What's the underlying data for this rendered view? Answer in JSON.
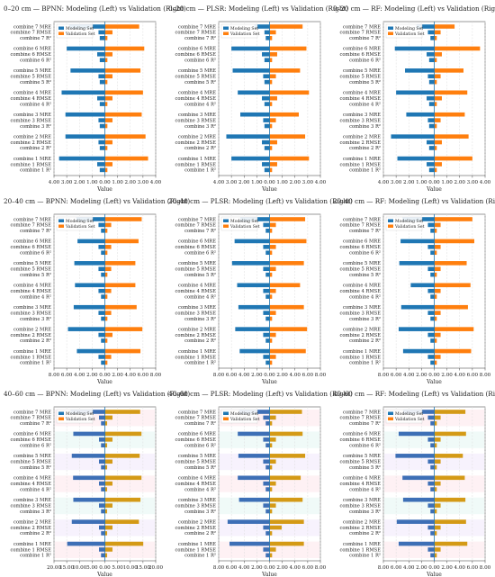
{
  "colors": {
    "modeling": "#1f77b4",
    "validation": "#ff7f0e",
    "grid": "#dcdcdc",
    "zero_line": "#1f77b4",
    "shade_40_60": [
      "#fde7ec",
      "#e6f7f4",
      "#f1e9fb"
    ]
  },
  "legend": {
    "modeling": "Modeling Set",
    "validation": "Validation Set"
  },
  "row_labels": [
    "combine 7 MRE",
    "combine 7 RMSE",
    "combine 7 R²",
    "combine 6 MRE",
    "combine 6 RMSE",
    "combine 6 R²",
    "combine 5 MRE",
    "combine 5 RMSE",
    "combine 5 R²",
    "combine 4 MRE",
    "combine 4 RMSE",
    "combine 4 R²",
    "combine 3 MRE",
    "combine 3 RMSE",
    "combine 3 R²",
    "combine 2 MRE",
    "combine 2 RMSE",
    "combine 2 R²",
    "combine 1 MRE",
    "combine 1 RMSE",
    "combine 1 R²"
  ],
  "chart_data": [
    {
      "type": "bar",
      "orientation": "horizontal-diverging",
      "title": "0–20 cm — BPNN: Modeling (Left) vs Validation (Right)",
      "xlabel": "Value",
      "xlim": [
        -4,
        4
      ],
      "xticks": [
        "4.00",
        "3.00",
        "2.00",
        "1.00",
        "0.00",
        "1.00",
        "2.00",
        "3.00",
        "4.00"
      ],
      "grid": true,
      "legend": "top-left",
      "split_colors": false,
      "series": [
        {
          "name": "Modeling Set",
          "values": [
            -2.8,
            -0.5,
            -0.4,
            -3.0,
            -0.6,
            -0.4,
            -2.7,
            -0.5,
            -0.4,
            -3.4,
            -0.6,
            -0.4,
            -3.1,
            -0.5,
            -0.4,
            -3.1,
            -0.5,
            -0.4,
            -3.6,
            -0.6,
            -0.4
          ]
        },
        {
          "name": "Validation Set",
          "values": [
            2.7,
            0.6,
            0.2,
            3.1,
            0.6,
            0.2,
            2.8,
            0.6,
            0.2,
            3.0,
            0.6,
            0.2,
            2.9,
            0.6,
            0.2,
            3.2,
            0.6,
            0.2,
            3.4,
            0.6,
            0.2
          ]
        }
      ]
    },
    {
      "type": "bar",
      "orientation": "horizontal-diverging",
      "title": "0–20 cm — PLSR: Modeling (Left) vs Validation (Right)",
      "xlabel": "Value",
      "xlim": [
        -4,
        4
      ],
      "xticks": [
        "4.00",
        "3.00",
        "2.00",
        "1.00",
        "0.00",
        "1.00",
        "2.00",
        "3.00",
        "4.00"
      ],
      "grid": true,
      "legend": "top-left",
      "split_colors": false,
      "series": [
        {
          "name": "Modeling Set",
          "values": [
            -1.2,
            -0.4,
            -0.3,
            -3.0,
            -0.6,
            -0.4,
            -2.9,
            -0.5,
            -0.4,
            -2.5,
            -0.6,
            -0.4,
            -2.3,
            -0.5,
            -0.4,
            -3.4,
            -0.6,
            -0.4,
            -3.0,
            -0.6,
            -0.4
          ]
        },
        {
          "name": "Validation Set",
          "values": [
            2.6,
            0.5,
            0.2,
            2.9,
            0.6,
            0.2,
            2.4,
            0.5,
            0.2,
            3.1,
            0.6,
            0.2,
            2.3,
            0.5,
            0.2,
            2.8,
            0.6,
            0.2,
            3.1,
            0.6,
            0.2
          ]
        }
      ]
    },
    {
      "type": "bar",
      "orientation": "horizontal-diverging",
      "title": "0–20 cm — RF: Modeling (Left) vs Validation (Right)",
      "xlabel": "Value",
      "xlim": [
        -4,
        4
      ],
      "xticks": [
        "4.00",
        "3.00",
        "2.00",
        "1.00",
        "0.00",
        "1.00",
        "2.00",
        "3.00",
        "4.00"
      ],
      "grid": true,
      "legend": "top-left",
      "split_colors": false,
      "series": [
        {
          "name": "Modeling Set",
          "values": [
            -1.4,
            -0.5,
            -0.3,
            -3.1,
            -0.6,
            -0.4,
            -2.3,
            -0.5,
            -0.4,
            -3.0,
            -0.6,
            -0.4,
            -2.2,
            -0.5,
            -0.4,
            -3.4,
            -0.6,
            -0.4,
            -2.9,
            -0.6,
            -0.4
          ]
        },
        {
          "name": "Validation Set",
          "values": [
            1.6,
            0.5,
            0.2,
            3.6,
            0.6,
            0.2,
            2.3,
            0.5,
            0.2,
            2.6,
            0.6,
            0.2,
            2.4,
            0.5,
            0.2,
            2.7,
            0.6,
            0.2,
            3.0,
            0.6,
            0.2
          ]
        }
      ]
    },
    {
      "type": "bar",
      "orientation": "horizontal-diverging",
      "title": "20–40 cm — BPNN: Modeling (Left) vs Validation (Right)",
      "xlabel": "Value",
      "xlim": [
        -8,
        8
      ],
      "xticks": [
        "8.00",
        "6.00",
        "4.00",
        "2.00",
        "0.00",
        "2.00",
        "4.00",
        "6.00",
        "8.00"
      ],
      "grid": true,
      "legend": "top-left",
      "split_colors": false,
      "series": [
        {
          "name": "Modeling Set",
          "values": [
            -4.5,
            -1.0,
            -0.6,
            -4.3,
            -1.0,
            -0.6,
            -4.8,
            -1.0,
            -0.6,
            -4.7,
            -1.0,
            -0.6,
            -4.9,
            -1.0,
            -0.6,
            -5.8,
            -1.0,
            -0.6,
            -4.4,
            -1.0,
            -0.6
          ]
        },
        {
          "name": "Validation Set",
          "values": [
            5.8,
            1.0,
            0.4,
            5.3,
            1.0,
            0.4,
            4.8,
            1.0,
            0.4,
            4.8,
            1.0,
            0.4,
            5.0,
            1.0,
            0.4,
            5.9,
            1.2,
            0.4,
            5.6,
            1.0,
            0.4
          ]
        }
      ]
    },
    {
      "type": "bar",
      "orientation": "horizontal-diverging",
      "title": "20–40 cm — PLSR: Modeling (Left) vs Validation (Right)",
      "xlabel": "Value",
      "xlim": [
        -8,
        8
      ],
      "xticks": [
        "8.00",
        "6.00",
        "4.00",
        "2.00",
        "0.00",
        "2.00",
        "4.00",
        "6.00",
        "8.00"
      ],
      "grid": true,
      "legend": "top-left",
      "split_colors": false,
      "series": [
        {
          "name": "Modeling Set",
          "values": [
            -4.6,
            -1.0,
            -0.6,
            -5.5,
            -1.0,
            -0.6,
            -5.9,
            -1.0,
            -0.6,
            -5.1,
            -1.0,
            -0.6,
            -4.9,
            -1.0,
            -0.6,
            -5.4,
            -1.0,
            -0.6,
            -4.7,
            -1.0,
            -0.6
          ]
        },
        {
          "name": "Validation Set",
          "values": [
            5.6,
            1.0,
            0.4,
            5.8,
            1.0,
            0.4,
            5.4,
            1.0,
            0.4,
            4.8,
            1.0,
            0.4,
            5.4,
            1.0,
            0.4,
            5.9,
            1.0,
            0.4,
            5.7,
            1.0,
            0.4
          ]
        }
      ]
    },
    {
      "type": "bar",
      "orientation": "horizontal-diverging",
      "title": "20–40 cm — RF: Modeling (Left) vs Validation (Right)",
      "xlabel": "Value",
      "xlim": [
        -8,
        8
      ],
      "xticks": [
        "8.00",
        "6.00",
        "4.00",
        "2.00",
        "0.00",
        "2.00",
        "4.00",
        "6.00",
        "8.00"
      ],
      "grid": true,
      "legend": "top-left",
      "split_colors": false,
      "series": [
        {
          "name": "Modeling Set",
          "values": [
            -5.0,
            -1.0,
            -0.6,
            -5.3,
            -1.0,
            -0.6,
            -5.5,
            -1.0,
            -0.6,
            -3.7,
            -1.0,
            -0.6,
            -5.2,
            -1.0,
            -0.6,
            -5.6,
            -1.0,
            -0.6,
            -4.9,
            -1.0,
            -0.6
          ]
        },
        {
          "name": "Validation Set",
          "values": [
            6.0,
            1.0,
            0.4,
            6.3,
            1.0,
            0.4,
            5.1,
            1.0,
            0.4,
            5.7,
            1.0,
            0.4,
            5.3,
            1.0,
            0.4,
            6.2,
            1.0,
            0.4,
            5.8,
            1.0,
            0.4
          ]
        }
      ]
    },
    {
      "type": "bar",
      "orientation": "horizontal-diverging",
      "title": "40–60 cm — BPNN: Modeling (Left) vs Validation (Right)",
      "xlabel": "Value",
      "xlim": [
        -20,
        20
      ],
      "xticks": [
        "20.00",
        "15.00",
        "10.00",
        "5.00",
        "0.00",
        "5.00",
        "10.00",
        "15.00",
        "20.00"
      ],
      "grid": true,
      "legend": "top-left",
      "split_colors": true,
      "series": [
        {
          "name": "Modeling Set",
          "values": [
            -13.5,
            -2.3,
            -1.5,
            -12.4,
            -2.3,
            -1.5,
            -13.0,
            -2.3,
            -1.5,
            -12.5,
            -2.3,
            -1.5,
            -12.4,
            -2.3,
            -1.5,
            -13.0,
            -2.3,
            -1.5,
            -14.8,
            -2.3,
            -1.5
          ]
        },
        {
          "name": "Validation Set",
          "values": [
            13.9,
            3.0,
            0.9,
            14.4,
            3.0,
            0.9,
            13.7,
            3.0,
            0.9,
            14.4,
            3.0,
            0.9,
            14.0,
            3.0,
            0.9,
            13.4,
            3.0,
            0.9,
            15.1,
            3.0,
            0.9
          ]
        }
      ]
    },
    {
      "type": "bar",
      "orientation": "horizontal-diverging",
      "title": "40–60 cm — PLSR: Modeling (Left) vs Validation (Right)",
      "xlabel": "Value",
      "xlim": [
        -8,
        8
      ],
      "xticks": [
        "8.00",
        "6.00",
        "4.00",
        "2.00",
        "0.00",
        "2.00",
        "4.00",
        "6.00",
        "8.00"
      ],
      "grid": true,
      "legend": "top-left",
      "split_colors": true,
      "series": [
        {
          "name": "Modeling Set",
          "values": [
            -4.8,
            -1.0,
            -0.6,
            -5.0,
            -1.0,
            -0.6,
            -4.9,
            -1.0,
            -0.6,
            -5.0,
            -1.0,
            -0.6,
            -4.8,
            -1.0,
            -0.6,
            -6.6,
            -1.0,
            -0.6,
            -6.3,
            -1.0,
            -0.6
          ]
        },
        {
          "name": "Validation Set",
          "values": [
            5.1,
            1.0,
            0.4,
            5.2,
            1.0,
            0.4,
            5.6,
            1.0,
            0.4,
            4.9,
            1.0,
            0.4,
            5.2,
            1.0,
            0.4,
            5.4,
            1.9,
            0.4,
            5.4,
            1.0,
            0.4
          ]
        }
      ]
    },
    {
      "type": "bar",
      "orientation": "horizontal-diverging",
      "title": "40–60 cm — RF: Modeling (Left) vs Validation (Right)",
      "xlabel": "Value",
      "xlim": [
        -8,
        8
      ],
      "xticks": [
        "8.00",
        "6.00",
        "4.00",
        "2.00",
        "0.00",
        "2.00",
        "4.00",
        "6.00",
        "8.00"
      ],
      "grid": true,
      "legend": "top-left",
      "split_colors": true,
      "series": [
        {
          "name": "Modeling Set",
          "values": [
            -4.9,
            -1.0,
            -0.6,
            -5.6,
            -1.0,
            -0.6,
            -6.1,
            -1.0,
            -0.6,
            -5.0,
            -1.0,
            -0.6,
            -4.9,
            -1.0,
            -0.6,
            -5.9,
            -1.0,
            -0.6,
            -5.6,
            -1.0,
            -0.6
          ]
        },
        {
          "name": "Validation Set",
          "values": [
            4.9,
            1.0,
            0.4,
            5.0,
            1.0,
            0.4,
            4.5,
            1.0,
            0.4,
            4.8,
            1.0,
            0.4,
            4.9,
            1.0,
            0.4,
            5.0,
            1.0,
            0.4,
            5.2,
            1.0,
            0.4
          ]
        }
      ]
    }
  ]
}
